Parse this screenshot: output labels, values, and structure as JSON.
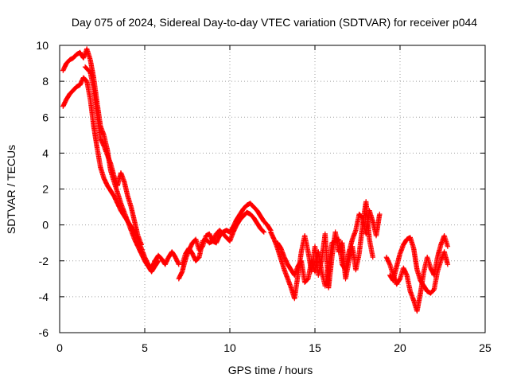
{
  "chart_data": {
    "type": "scatter",
    "title": "Day 075 of 2024, Sidereal Day-to-day VTEC variation (SDTVAR) for receiver p044",
    "xlabel": "GPS time / hours",
    "ylabel": "SDTVAR / TECUs",
    "xlim": [
      0,
      25
    ],
    "ylim": [
      -6,
      10
    ],
    "xticks": [
      "0",
      "5",
      "10",
      "15",
      "20",
      "25"
    ],
    "yticks": [
      "-6",
      "-4",
      "-2",
      "0",
      "2",
      "4",
      "6",
      "8",
      "10"
    ],
    "grid": true,
    "marker": "plus",
    "series": [
      {
        "name": "SDTVAR",
        "color": "#ff0000",
        "tracks": [
          [
            [
              0.2,
              8.6
            ],
            [
              0.4,
              9.0
            ],
            [
              0.6,
              9.2
            ],
            [
              0.8,
              9.3
            ],
            [
              1.0,
              9.5
            ],
            [
              1.2,
              9.6
            ],
            [
              1.4,
              9.3
            ],
            [
              1.6,
              9.8
            ],
            [
              1.8,
              9.2
            ],
            [
              2.0,
              8.2
            ],
            [
              2.2,
              6.8
            ],
            [
              2.4,
              5.5
            ],
            [
              2.6,
              5.0
            ],
            [
              2.8,
              4.2
            ],
            [
              3.0,
              3.0
            ],
            [
              3.2,
              2.4
            ],
            [
              3.4,
              1.8
            ],
            [
              3.6,
              1.2
            ],
            [
              3.8,
              0.7
            ],
            [
              4.0,
              0.2
            ],
            [
              4.2,
              -0.1
            ],
            [
              4.4,
              -0.4
            ],
            [
              4.6,
              -0.8
            ],
            [
              4.8,
              -1.3
            ],
            [
              5.0,
              -1.8
            ],
            [
              5.2,
              -2.2
            ],
            [
              5.4,
              -2.4
            ],
            [
              5.6,
              -2.0
            ],
            [
              5.8,
              -1.7
            ],
            [
              6.0,
              -1.9
            ],
            [
              6.2,
              -2.2
            ],
            [
              6.4,
              -1.8
            ],
            [
              6.6,
              -1.5
            ],
            [
              6.8,
              -1.8
            ],
            [
              7.0,
              -2.2
            ]
          ],
          [
            [
              0.2,
              6.6
            ],
            [
              0.4,
              7.0
            ],
            [
              0.6,
              7.3
            ],
            [
              0.8,
              7.5
            ],
            [
              1.0,
              7.7
            ],
            [
              1.2,
              7.8
            ],
            [
              1.4,
              8.2
            ],
            [
              1.6,
              8.0
            ],
            [
              1.8,
              7.0
            ],
            [
              2.0,
              5.5
            ],
            [
              2.2,
              4.3
            ],
            [
              2.4,
              3.2
            ],
            [
              2.6,
              2.6
            ],
            [
              2.8,
              2.2
            ],
            [
              3.0,
              1.9
            ],
            [
              3.2,
              1.6
            ],
            [
              3.4,
              1.2
            ],
            [
              3.6,
              0.8
            ],
            [
              3.8,
              0.5
            ],
            [
              4.0,
              0.2
            ],
            [
              4.2,
              -0.3
            ],
            [
              4.4,
              -0.8
            ],
            [
              4.6,
              -1.2
            ],
            [
              4.8,
              -1.6
            ],
            [
              5.0,
              -2.0
            ],
            [
              5.2,
              -2.3
            ],
            [
              5.4,
              -2.6
            ],
            [
              5.6,
              -2.3
            ],
            [
              5.8,
              -2.0
            ]
          ],
          [
            [
              1.5,
              8.8
            ],
            [
              1.8,
              8.5
            ],
            [
              2.0,
              7.6
            ],
            [
              2.2,
              6.2
            ],
            [
              2.4,
              4.8
            ],
            [
              2.6,
              4.4
            ],
            [
              2.8,
              3.9
            ],
            [
              3.0,
              3.4
            ],
            [
              3.2,
              2.7
            ],
            [
              3.4,
              2.2
            ],
            [
              3.6,
              2.9
            ],
            [
              3.8,
              2.4
            ],
            [
              4.0,
              1.6
            ],
            [
              4.2,
              1.0
            ],
            [
              4.4,
              0.2
            ],
            [
              4.6,
              -0.6
            ],
            [
              4.8,
              -1.1
            ]
          ],
          [
            [
              7.0,
              -3.0
            ],
            [
              7.2,
              -2.6
            ],
            [
              7.4,
              -1.9
            ],
            [
              7.6,
              -1.4
            ],
            [
              7.8,
              -1.0
            ],
            [
              8.0,
              -0.8
            ],
            [
              8.2,
              -1.4
            ],
            [
              8.4,
              -1.2
            ],
            [
              8.6,
              -0.6
            ],
            [
              8.8,
              -0.5
            ],
            [
              9.0,
              -0.9
            ],
            [
              9.2,
              -1.0
            ],
            [
              9.4,
              -0.6
            ],
            [
              9.6,
              -0.4
            ],
            [
              9.8,
              -0.3
            ],
            [
              10.0,
              -0.4
            ],
            [
              10.2,
              -0.1
            ],
            [
              10.4,
              0.3
            ],
            [
              10.6,
              0.6
            ],
            [
              10.8,
              0.9
            ],
            [
              11.0,
              1.1
            ],
            [
              11.2,
              1.2
            ],
            [
              11.4,
              1.0
            ],
            [
              11.6,
              0.8
            ],
            [
              11.8,
              0.5
            ],
            [
              12.0,
              0.2
            ],
            [
              12.2,
              0.0
            ],
            [
              12.4,
              -0.3
            ]
          ],
          [
            [
              7.2,
              -2.2
            ],
            [
              7.4,
              -1.6
            ],
            [
              7.6,
              -1.3
            ],
            [
              7.8,
              -1.6
            ],
            [
              8.0,
              -2.0
            ],
            [
              8.2,
              -1.8
            ],
            [
              8.4,
              -0.9
            ],
            [
              8.6,
              -0.8
            ],
            [
              8.8,
              -1.0
            ],
            [
              9.0,
              -0.9
            ],
            [
              9.2,
              -0.5
            ],
            [
              9.4,
              -0.3
            ],
            [
              9.6,
              -0.5
            ],
            [
              9.8,
              -0.7
            ],
            [
              10.0,
              -0.9
            ],
            [
              10.2,
              -0.4
            ],
            [
              10.4,
              0.0
            ],
            [
              10.6,
              0.3
            ],
            [
              10.8,
              0.5
            ],
            [
              11.0,
              0.7
            ],
            [
              11.2,
              0.6
            ],
            [
              11.4,
              0.4
            ],
            [
              11.6,
              0.1
            ],
            [
              11.8,
              -0.2
            ],
            [
              12.0,
              -0.4
            ]
          ],
          [
            [
              12.4,
              -0.4
            ],
            [
              12.6,
              -0.8
            ],
            [
              12.8,
              -1.3
            ],
            [
              13.0,
              -1.9
            ],
            [
              13.2,
              -2.5
            ],
            [
              13.4,
              -3.0
            ],
            [
              13.6,
              -3.5
            ],
            [
              13.8,
              -4.1
            ],
            [
              14.0,
              -2.8
            ],
            [
              14.2,
              -1.5
            ],
            [
              14.4,
              -0.6
            ],
            [
              14.6,
              -1.5
            ],
            [
              14.8,
              -2.6
            ],
            [
              15.0,
              -1.2
            ],
            [
              15.2,
              -2.8
            ],
            [
              15.4,
              -1.9
            ],
            [
              15.6,
              -0.5
            ],
            [
              15.8,
              -3.5
            ],
            [
              16.0,
              -1.8
            ],
            [
              16.2,
              -0.4
            ],
            [
              16.4,
              -1.5
            ],
            [
              16.6,
              -1.0
            ],
            [
              16.8,
              -3.0
            ],
            [
              17.0,
              -2.0
            ],
            [
              17.2,
              -1.2
            ],
            [
              17.4,
              -2.5
            ],
            [
              17.6,
              -1.6
            ],
            [
              17.8,
              0.0
            ],
            [
              18.0,
              1.3
            ],
            [
              18.2,
              -0.8
            ],
            [
              18.4,
              -1.8
            ]
          ],
          [
            [
              12.8,
              -1.0
            ],
            [
              13.0,
              -1.3
            ],
            [
              13.2,
              -1.8
            ],
            [
              13.4,
              -2.2
            ],
            [
              13.6,
              -2.5
            ],
            [
              13.8,
              -2.8
            ],
            [
              14.0,
              -2.3
            ],
            [
              14.2,
              -2.0
            ],
            [
              14.4,
              -3.2
            ],
            [
              14.6,
              -3.0
            ],
            [
              14.8,
              -2.0
            ],
            [
              15.0,
              -2.6
            ],
            [
              15.2,
              -1.5
            ],
            [
              15.4,
              -2.6
            ],
            [
              15.6,
              -3.4
            ],
            [
              15.8,
              -2.4
            ],
            [
              16.0,
              -1.0
            ],
            [
              16.4,
              -0.8
            ],
            [
              16.6,
              -2.2
            ],
            [
              16.8,
              -2.5
            ],
            [
              17.0,
              -1.5
            ],
            [
              17.2,
              -0.8
            ],
            [
              17.4,
              -0.3
            ],
            [
              17.6,
              0.6
            ],
            [
              17.8,
              0.4
            ],
            [
              18.0,
              -0.5
            ],
            [
              18.2,
              0.8
            ],
            [
              18.4,
              0.2
            ],
            [
              18.6,
              -0.6
            ],
            [
              18.8,
              0.6
            ]
          ],
          [
            [
              19.2,
              -1.8
            ],
            [
              19.4,
              -2.2
            ],
            [
              19.6,
              -2.8
            ],
            [
              19.8,
              -3.3
            ],
            [
              20.0,
              -3.0
            ],
            [
              20.2,
              -2.4
            ],
            [
              20.4,
              -2.8
            ],
            [
              20.6,
              -3.7
            ],
            [
              20.8,
              -4.2
            ],
            [
              21.0,
              -4.8
            ],
            [
              21.2,
              -3.8
            ],
            [
              21.4,
              -2.6
            ],
            [
              21.6,
              -1.8
            ],
            [
              21.8,
              -2.4
            ],
            [
              22.0,
              -2.8
            ],
            [
              22.2,
              -1.8
            ],
            [
              22.4,
              -1.1
            ],
            [
              22.6,
              -0.6
            ],
            [
              22.8,
              -1.2
            ]
          ],
          [
            [
              19.4,
              -2.8
            ],
            [
              19.6,
              -3.1
            ],
            [
              19.8,
              -2.3
            ],
            [
              20.0,
              -1.6
            ],
            [
              20.2,
              -1.1
            ],
            [
              20.4,
              -0.8
            ],
            [
              20.6,
              -0.7
            ],
            [
              20.8,
              -1.3
            ],
            [
              21.0,
              -2.5
            ],
            [
              21.2,
              -3.1
            ],
            [
              21.4,
              -3.4
            ],
            [
              21.6,
              -3.7
            ],
            [
              21.8,
              -3.8
            ],
            [
              22.0,
              -3.6
            ],
            [
              22.2,
              -2.6
            ],
            [
              22.4,
              -2.0
            ],
            [
              22.6,
              -1.5
            ],
            [
              22.8,
              -2.2
            ]
          ]
        ]
      }
    ]
  }
}
